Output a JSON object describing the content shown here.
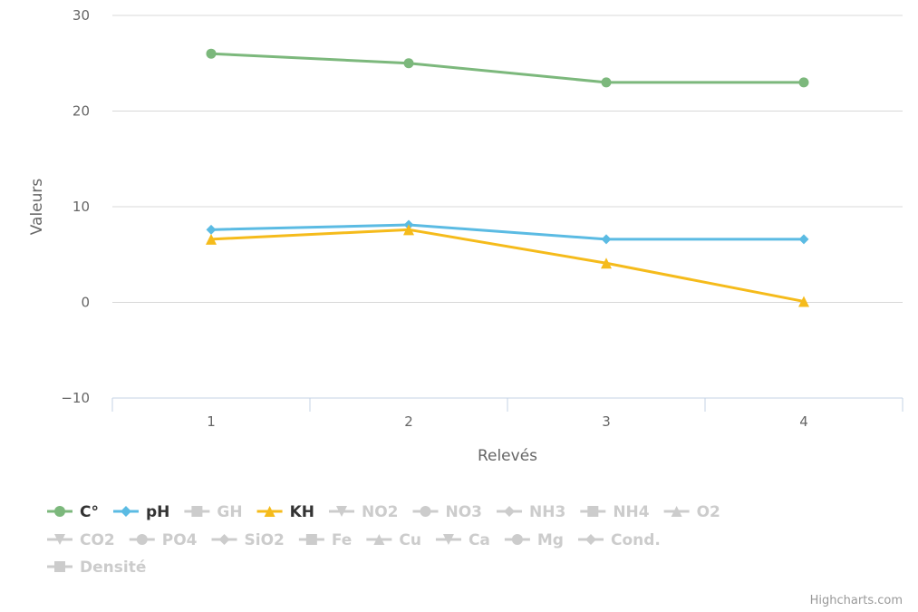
{
  "chart_data": {
    "type": "line",
    "title": "",
    "xlabel": "Relevés",
    "ylabel": "Valeurs",
    "categories": [
      "1",
      "2",
      "3",
      "4"
    ],
    "ylim": [
      -10,
      30
    ],
    "yticks": [
      -10,
      0,
      10,
      20,
      30
    ],
    "grid": true,
    "legend_position": "bottom-left",
    "series": [
      {
        "name": "C°",
        "values": [
          26,
          25,
          23,
          23
        ],
        "color": "#7cb87c",
        "marker": "circle",
        "visible": true
      },
      {
        "name": "pH",
        "values": [
          7.6,
          8.1,
          6.6,
          6.6
        ],
        "color": "#5bbbe3",
        "marker": "diamond",
        "visible": true
      },
      {
        "name": "KH",
        "values": [
          6.6,
          7.6,
          4.1,
          0.1
        ],
        "color": "#f5bb1b",
        "marker": "triangle",
        "visible": true
      }
    ],
    "hidden_series": [
      {
        "name": "GH",
        "marker": "square"
      },
      {
        "name": "NO2",
        "marker": "triangle-down"
      },
      {
        "name": "NO3",
        "marker": "circle"
      },
      {
        "name": "NH3",
        "marker": "diamond"
      },
      {
        "name": "NH4",
        "marker": "square"
      },
      {
        "name": "O2",
        "marker": "triangle"
      },
      {
        "name": "CO2",
        "marker": "triangle-down"
      },
      {
        "name": "PO4",
        "marker": "circle"
      },
      {
        "name": "SiO2",
        "marker": "diamond"
      },
      {
        "name": "Fe",
        "marker": "square"
      },
      {
        "name": "Cu",
        "marker": "triangle"
      },
      {
        "name": "Ca",
        "marker": "triangle-down"
      },
      {
        "name": "Mg",
        "marker": "circle"
      },
      {
        "name": "Cond.",
        "marker": "diamond"
      },
      {
        "name": "Densité",
        "marker": "square"
      }
    ],
    "colors": {
      "grid": "#d8d8d8",
      "axis": "#c4d3e6",
      "hidden": "#cccccc",
      "legend_text": "#333333"
    }
  },
  "credits": "Highcharts.com"
}
